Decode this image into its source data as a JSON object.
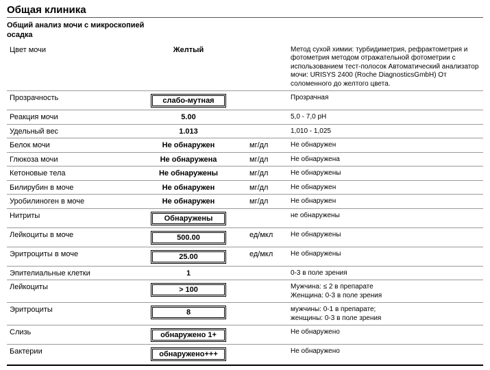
{
  "title": "Общая клиника",
  "subtitle": "Общий анализ мочи с микроскопией осадка",
  "rows": [
    {
      "name": "Цвет мочи",
      "value": "Желтый",
      "boxed": false,
      "unit": "",
      "ref": "Метод сухой химии: турбидиметрия, рефрактометрия и фотометрия методом отражательной фотометрии с использованием тест-полосок    Автоматический анализатор мочи: URISYS 2400 (Roche DiagnosticsGmbH) От соломенного до желтого цвета."
    },
    {
      "name": "Прозрачность",
      "value": "слабо-мутная",
      "boxed": true,
      "unit": "",
      "ref": "Прозрачная"
    },
    {
      "name": "Реакция мочи",
      "value": "5.00",
      "boxed": false,
      "unit": "",
      "ref": "5,0 - 7,0 pH"
    },
    {
      "name": "Удельный вес",
      "value": "1.013",
      "boxed": false,
      "unit": "",
      "ref": "1,010 - 1,025"
    },
    {
      "name": "Белок мочи",
      "value": "Не обнаружен",
      "boxed": false,
      "unit": "мг/дл",
      "ref": "Не обнаружен"
    },
    {
      "name": "Глюкоза мочи",
      "value": "Не обнаружена",
      "boxed": false,
      "unit": "мг/дл",
      "ref": "Не обнаружена"
    },
    {
      "name": "Кетоновые тела",
      "value": "Не обнаружены",
      "boxed": false,
      "unit": "мг/дл",
      "ref": "Не обнаружены"
    },
    {
      "name": "Билирубин в моче",
      "value": "Не обнаружен",
      "boxed": false,
      "unit": "мг/дл",
      "ref": "Не обнаружен"
    },
    {
      "name": "Уробилиноген в моче",
      "value": "Не обнаружен",
      "boxed": false,
      "unit": "мг/дл",
      "ref": "Не обнаружен"
    },
    {
      "name": "Нитриты",
      "value": "Обнаружены",
      "boxed": true,
      "unit": "",
      "ref": "не обнаружены"
    },
    {
      "name": "Лейкоциты в моче",
      "value": "500.00",
      "boxed": true,
      "unit": "ед/мкл",
      "ref": "Не обнаружены"
    },
    {
      "name": "Эритроциты в моче",
      "value": "25.00",
      "boxed": true,
      "unit": "ед/мкл",
      "ref": "Не обнаружены"
    },
    {
      "name": "Эпителиальные клетки",
      "value": "1",
      "boxed": false,
      "unit": "",
      "ref": "0-3 в поле зрения"
    },
    {
      "name": "Лейкоциты",
      "value": "> 100",
      "boxed": true,
      "unit": "",
      "ref": "Мужчина: ≤ 2 в препарате\nЖенщина: 0-3 в поле зрения"
    },
    {
      "name": "Эритроциты",
      "value": "8",
      "boxed": true,
      "unit": "",
      "ref": "мужчины: 0-1 в препарате;\nженщины: 0-3 в поле зрения"
    },
    {
      "name": "Слизь",
      "value": "обнаружено 1+",
      "boxed": true,
      "unit": "",
      "ref": "Не обнаружено"
    },
    {
      "name": "Бактерии",
      "value": "обнаружено+++",
      "boxed": true,
      "unit": "",
      "ref": "Не обнаружено"
    }
  ]
}
